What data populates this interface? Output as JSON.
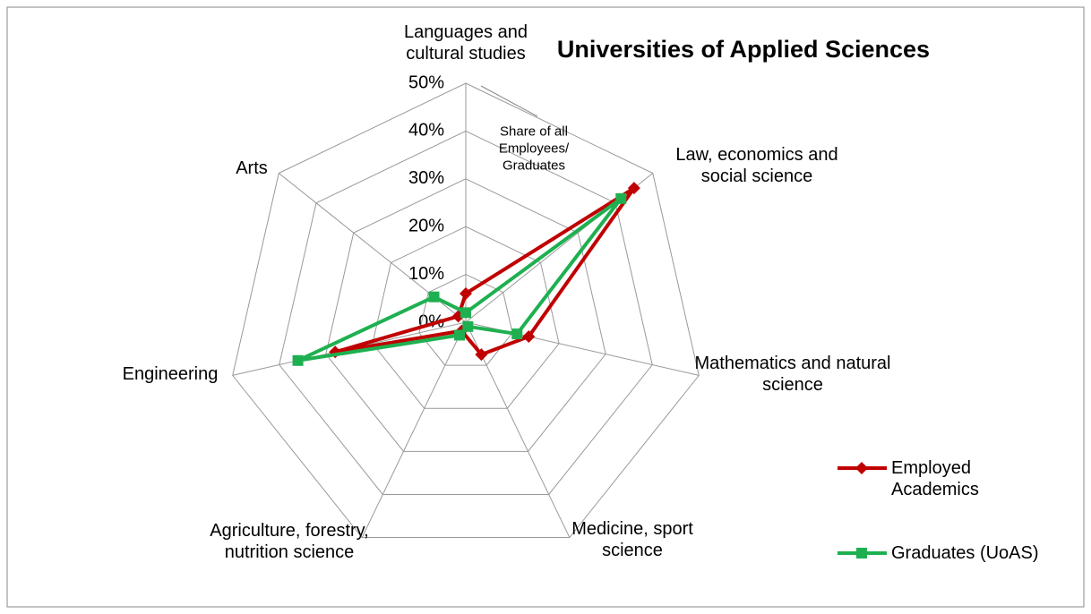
{
  "chart_data": {
    "type": "radar",
    "title": "Universities of Applied Sciences",
    "annotation": "Share of all Employees/ Graduates",
    "categories": [
      "Languages and cultural studies",
      "Law, economics and social science",
      "Mathematics and natural science",
      "Medicine, sport science",
      "Agriculture, forestry, nutrition science",
      "Engineering",
      "Arts"
    ],
    "series": [
      {
        "name": "Employed Academics",
        "color": "#c00000",
        "marker": "diamond",
        "values": [
          6,
          45,
          13.5,
          7.5,
          2,
          28,
          2
        ]
      },
      {
        "name": "Graduates (UoAS)",
        "color": "#1eb050",
        "marker": "square",
        "values": [
          2,
          41.5,
          11,
          1,
          3,
          36,
          8.5
        ]
      }
    ],
    "ylim": [
      0,
      50
    ],
    "yticks": [
      {
        "value": 0,
        "label": "0%"
      },
      {
        "value": 10,
        "label": "10%"
      },
      {
        "value": 20,
        "label": "20%"
      },
      {
        "value": 30,
        "label": "30%"
      },
      {
        "value": 40,
        "label": "40%"
      },
      {
        "value": 50,
        "label": "50%"
      }
    ],
    "grid": true,
    "legend": "right"
  }
}
